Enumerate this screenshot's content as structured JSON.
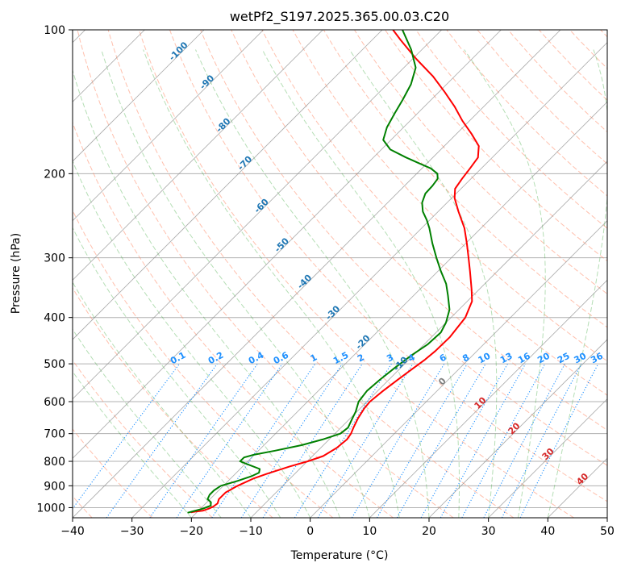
{
  "chart_data": {
    "type": "skew-t",
    "title": "wetPf2_S197.2025.365.00.03.C20",
    "xlabel": "Temperature (°C)",
    "ylabel": "Pressure (hPa)",
    "xlim": [
      -40,
      50
    ],
    "ylim": [
      1050,
      100
    ],
    "x_ticks": [
      "−40",
      "−30",
      "−20",
      "−10",
      "0",
      "10",
      "20",
      "30",
      "40",
      "50"
    ],
    "y_ticks": [
      {
        "p": 100,
        "label": "100"
      },
      {
        "p": 200,
        "label": "200"
      },
      {
        "p": 300,
        "label": "300"
      },
      {
        "p": 400,
        "label": "400"
      },
      {
        "p": 500,
        "label": "500"
      },
      {
        "p": 600,
        "label": "600"
      },
      {
        "p": 700,
        "label": "700"
      },
      {
        "p": 800,
        "label": "800"
      },
      {
        "p": 900,
        "label": "900"
      },
      {
        "p": 1000,
        "label": "1000"
      }
    ],
    "isotherm_labels": [
      {
        "t": -100,
        "p": 112,
        "label": "-100"
      },
      {
        "t": -90,
        "p": 130,
        "label": "-90"
      },
      {
        "t": -80,
        "p": 160,
        "label": "-80"
      },
      {
        "t": -70,
        "p": 192,
        "label": "-70"
      },
      {
        "t": -60,
        "p": 236,
        "label": "-60"
      },
      {
        "t": -50,
        "p": 285,
        "label": "-50"
      },
      {
        "t": -40,
        "p": 340,
        "label": "-40"
      },
      {
        "t": -30,
        "p": 395,
        "label": "-30"
      },
      {
        "t": -20,
        "p": 455,
        "label": "-20"
      },
      {
        "t": -10,
        "p": 505,
        "label": "-10"
      },
      {
        "t": 0,
        "p": 550,
        "label": "0"
      },
      {
        "t": 10,
        "p": 610,
        "label": "10"
      },
      {
        "t": 20,
        "p": 690,
        "label": "20"
      },
      {
        "t": 30,
        "p": 780,
        "label": "30"
      },
      {
        "t": 40,
        "p": 880,
        "label": "40"
      }
    ],
    "mixing_ratios": [
      {
        "w": 0.1,
        "label": "0.1"
      },
      {
        "w": 0.2,
        "label": "0.2"
      },
      {
        "w": 0.4,
        "label": "0.4"
      },
      {
        "w": 0.6,
        "label": "0.6"
      },
      {
        "w": 1,
        "label": "1"
      },
      {
        "w": 1.5,
        "label": "1.5"
      },
      {
        "w": 2,
        "label": "2"
      },
      {
        "w": 3,
        "label": "3"
      },
      {
        "w": 4,
        "label": "4"
      },
      {
        "w": 6,
        "label": "6"
      },
      {
        "w": 8,
        "label": "8"
      },
      {
        "w": 10,
        "label": "10"
      },
      {
        "w": 13,
        "label": "13"
      },
      {
        "w": 16,
        "label": "16"
      },
      {
        "w": 20,
        "label": "20"
      },
      {
        "w": 25,
        "label": "25"
      },
      {
        "w": 30,
        "label": "30"
      },
      {
        "w": 36,
        "label": "36"
      }
    ],
    "series": [
      {
        "name": "Temperature",
        "color": "#ff0000",
        "points": [
          [
            1023,
            -21
          ],
          [
            1020,
            -20.5
          ],
          [
            1015,
            -19.3
          ],
          [
            1005,
            -18.6
          ],
          [
            995,
            -18.2
          ],
          [
            980,
            -18
          ],
          [
            960,
            -18.5
          ],
          [
            930,
            -18.5
          ],
          [
            900,
            -17.6
          ],
          [
            870,
            -16.2
          ],
          [
            850,
            -14.7
          ],
          [
            820,
            -12.1
          ],
          [
            800,
            -9.9
          ],
          [
            780,
            -8.2
          ],
          [
            750,
            -7.3
          ],
          [
            720,
            -7
          ],
          [
            700,
            -7.3
          ],
          [
            680,
            -7.9
          ],
          [
            650,
            -8.7
          ],
          [
            620,
            -9.3
          ],
          [
            600,
            -9.5
          ],
          [
            570,
            -9.1
          ],
          [
            540,
            -8.5
          ],
          [
            510,
            -7.8
          ],
          [
            490,
            -7.3
          ],
          [
            470,
            -7
          ],
          [
            440,
            -6.9
          ],
          [
            400,
            -7.6
          ],
          [
            370,
            -9.2
          ],
          [
            350,
            -11.2
          ],
          [
            320,
            -14.6
          ],
          [
            300,
            -17.1
          ],
          [
            280,
            -19.8
          ],
          [
            260,
            -22.8
          ],
          [
            240,
            -26.6
          ],
          [
            225,
            -29.5
          ],
          [
            215,
            -31
          ],
          [
            205,
            -31.5
          ],
          [
            195,
            -31.9
          ],
          [
            185,
            -32.4
          ],
          [
            175,
            -34.2
          ],
          [
            165,
            -37.5
          ],
          [
            155,
            -41.2
          ],
          [
            145,
            -44.8
          ],
          [
            135,
            -49
          ],
          [
            125,
            -53.7
          ],
          [
            115,
            -59.4
          ],
          [
            105,
            -65.2
          ],
          [
            100,
            -68.2
          ]
        ]
      },
      {
        "name": "Dewpoint",
        "color": "#008000",
        "points": [
          [
            1025,
            -21.5
          ],
          [
            1020,
            -21
          ],
          [
            1005,
            -19.6
          ],
          [
            990,
            -18.8
          ],
          [
            975,
            -19.3
          ],
          [
            960,
            -20.4
          ],
          [
            940,
            -20.8
          ],
          [
            920,
            -20.8
          ],
          [
            900,
            -20.4
          ],
          [
            880,
            -18.5
          ],
          [
            860,
            -16.9
          ],
          [
            845,
            -16.2
          ],
          [
            830,
            -16.7
          ],
          [
            815,
            -19
          ],
          [
            800,
            -21.3
          ],
          [
            785,
            -21.3
          ],
          [
            775,
            -20.1
          ],
          [
            760,
            -17.2
          ],
          [
            740,
            -13.7
          ],
          [
            720,
            -11.1
          ],
          [
            700,
            -9.1
          ],
          [
            680,
            -8.8
          ],
          [
            655,
            -9.5
          ],
          [
            630,
            -10.2
          ],
          [
            600,
            -11.4
          ],
          [
            570,
            -11.8
          ],
          [
            540,
            -11.5
          ],
          [
            510,
            -11
          ],
          [
            480,
            -10.3
          ],
          [
            455,
            -9.4
          ],
          [
            430,
            -9.2
          ],
          [
            410,
            -10
          ],
          [
            385,
            -11.6
          ],
          [
            360,
            -14.2
          ],
          [
            340,
            -16.5
          ],
          [
            320,
            -19.5
          ],
          [
            300,
            -22.5
          ],
          [
            280,
            -25.6
          ],
          [
            260,
            -28.7
          ],
          [
            250,
            -30.5
          ],
          [
            240,
            -32.6
          ],
          [
            230,
            -34.2
          ],
          [
            220,
            -35.2
          ],
          [
            212,
            -35.3
          ],
          [
            205,
            -35.6
          ],
          [
            200,
            -36.5
          ],
          [
            195,
            -38.5
          ],
          [
            190,
            -41.5
          ],
          [
            185,
            -44.5
          ],
          [
            178,
            -48.5
          ],
          [
            170,
            -51.3
          ],
          [
            160,
            -52.8
          ],
          [
            150,
            -53.8
          ],
          [
            140,
            -54.8
          ],
          [
            130,
            -56
          ],
          [
            120,
            -58
          ],
          [
            110,
            -61.8
          ],
          [
            100,
            -66.6
          ]
        ]
      }
    ],
    "colors": {
      "isotherm_label": "#1f77b4",
      "mixing_label": "#1e90ff",
      "hot_label": "#d62728",
      "zero_label": "#808080",
      "grid": "#b0b0b0",
      "isotherm": "#8c8c8c",
      "dry_adiabat": "#ff8c69",
      "moist_adiabat": "#2ca02c",
      "mixing_line": "#1e90ff"
    },
    "grid": true
  }
}
